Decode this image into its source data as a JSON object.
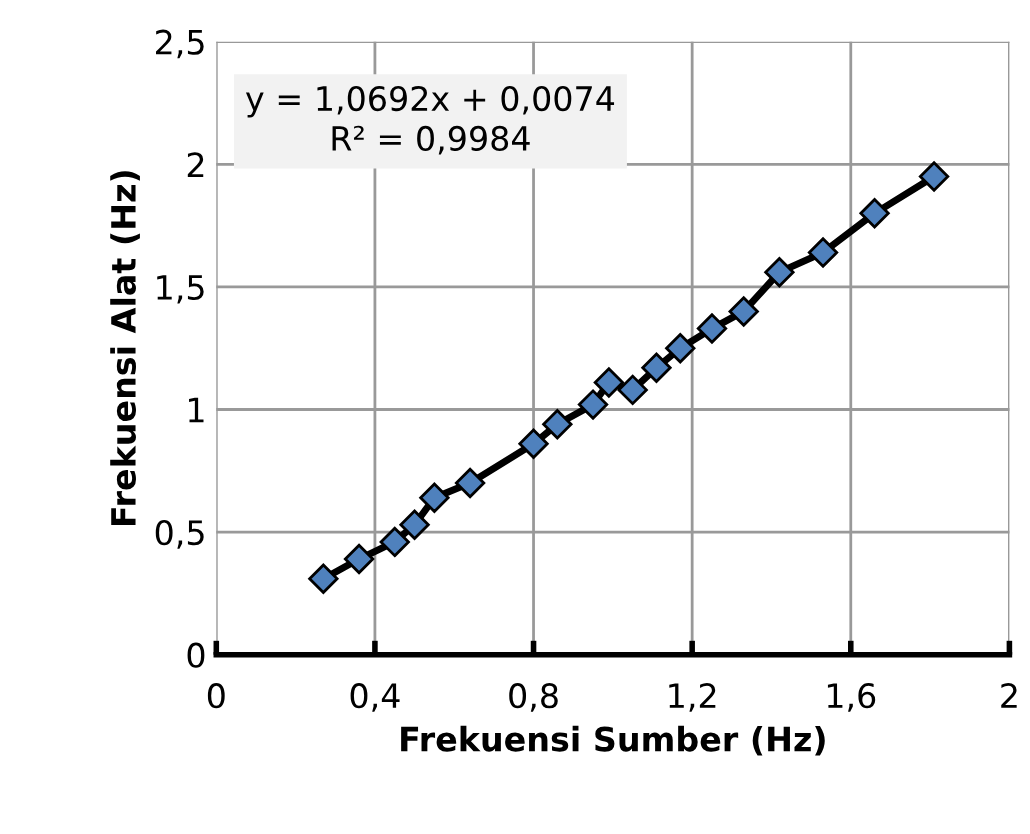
{
  "chart_data": {
    "type": "line",
    "xlabel": "Frekuensi Sumber (Hz)",
    "ylabel": "Frekuensi Alat (Hz)",
    "annotations": [
      "y = 1,0692x + 0,0074\nR² = 0,9984"
    ],
    "series": [
      {
        "color": "#4f81bd",
        "x": [
          0.27,
          0.36,
          0.45,
          0.5,
          0.55,
          0.64,
          0.8,
          0.86,
          0.95,
          0.99,
          1.05,
          1.11,
          1.17,
          1.25,
          1.33,
          1.42,
          1.53,
          1.66,
          1.81
        ],
        "values": [
          0.31,
          0.39,
          0.46,
          0.53,
          0.64,
          0.7,
          0.86,
          0.94,
          1.02,
          1.11,
          1.08,
          1.17,
          1.25,
          1.33,
          1.4,
          1.56,
          1.64,
          1.8,
          1.95
        ]
      }
    ],
    "xlim": [
      0,
      2
    ],
    "ylim": [
      0,
      2.5
    ],
    "xticks": [
      0,
      {
        "value": 0.4,
        "label": "0,4"
      },
      {
        "value": 0.8,
        "label": "0,8"
      },
      {
        "value": 1.2,
        "label": "1,2"
      },
      {
        "value": 1.6,
        "label": "1,6"
      },
      2
    ],
    "yticks": [
      0,
      {
        "value": 0.5,
        "label": "0,5"
      },
      1,
      {
        "value": 1.5,
        "label": "1,5"
      },
      2,
      {
        "value": 2.5,
        "label": "2,5"
      }
    ],
    "grid": true,
    "marker": "diamond",
    "line_style": "solid"
  }
}
